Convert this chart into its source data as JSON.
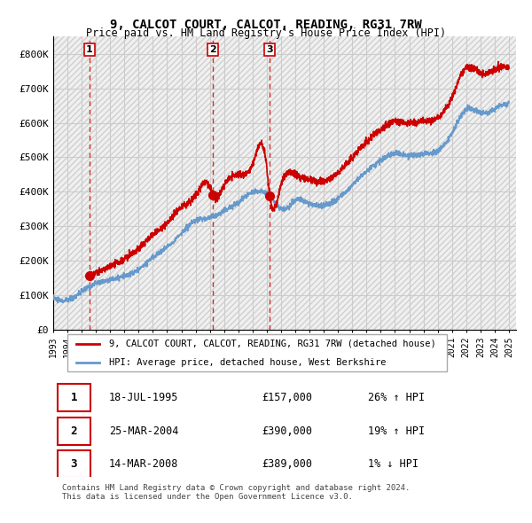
{
  "title": "9, CALCOT COURT, CALCOT, READING, RG31 7RW",
  "subtitle": "Price paid vs. HM Land Registry's House Price Index (HPI)",
  "xlim_start": 1993.0,
  "xlim_end": 2025.5,
  "ylim": [
    0,
    850000
  ],
  "yticks": [
    0,
    100000,
    200000,
    300000,
    400000,
    500000,
    600000,
    700000,
    800000
  ],
  "ytick_labels": [
    "£0",
    "£100K",
    "£200K",
    "£300K",
    "£400K",
    "£500K",
    "£600K",
    "£700K",
    "£800K"
  ],
  "sale_dates": [
    1995.54,
    2004.23,
    2008.2
  ],
  "sale_prices": [
    157000,
    390000,
    389000
  ],
  "sale_labels": [
    "1",
    "2",
    "3"
  ],
  "hpi_color": "#6699cc",
  "price_color": "#cc0000",
  "dashed_color": "#cc0000",
  "background_hatch_color": "#e8e8e8",
  "grid_color": "#cccccc",
  "legend_label_price": "9, CALCOT COURT, CALCOT, READING, RG31 7RW (detached house)",
  "legend_label_hpi": "HPI: Average price, detached house, West Berkshire",
  "table_rows": [
    {
      "num": "1",
      "date": "18-JUL-1995",
      "price": "£157,000",
      "hpi": "26% ↑ HPI"
    },
    {
      "num": "2",
      "date": "25-MAR-2004",
      "price": "£390,000",
      "hpi": "19% ↑ HPI"
    },
    {
      "num": "3",
      "date": "14-MAR-2008",
      "price": "£389,000",
      "hpi": "1% ↓ HPI"
    }
  ],
  "footer": "Contains HM Land Registry data © Crown copyright and database right 2024.\nThis data is licensed under the Open Government Licence v3.0.",
  "xtick_years": [
    1993,
    1994,
    1995,
    1996,
    1997,
    1998,
    1999,
    2000,
    2001,
    2002,
    2003,
    2004,
    2005,
    2006,
    2007,
    2008,
    2009,
    2010,
    2011,
    2012,
    2013,
    2014,
    2015,
    2016,
    2017,
    2018,
    2019,
    2020,
    2021,
    2022,
    2023,
    2024,
    2025
  ]
}
